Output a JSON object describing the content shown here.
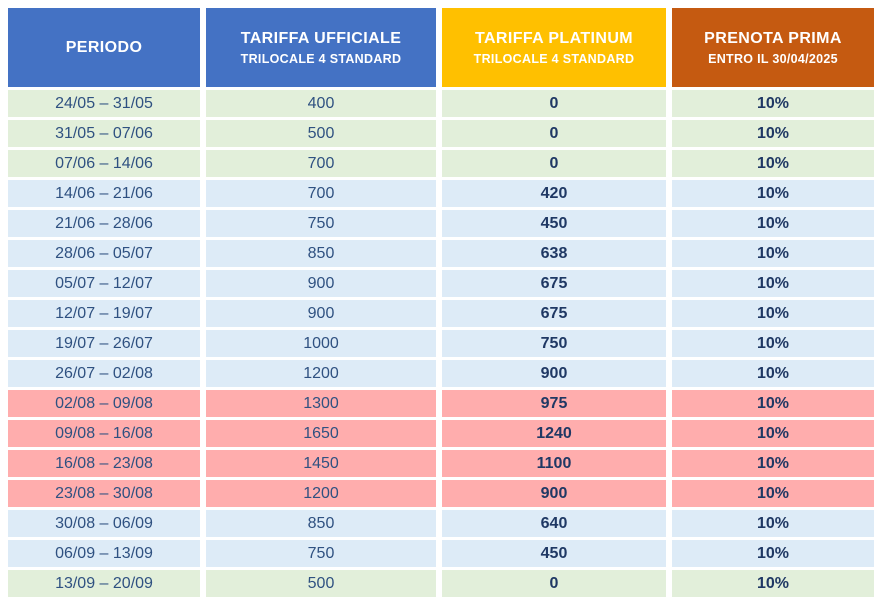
{
  "table": {
    "columns": [
      {
        "title": "PERIODO",
        "subtitle": ""
      },
      {
        "title": "TARIFFA UFFICIALE",
        "subtitle": "TRILOCALE 4 STANDARD"
      },
      {
        "title": "TARIFFA PLATINUM",
        "subtitle": "TRILOCALE 4 STANDARD"
      },
      {
        "title": "PRENOTA PRIMA",
        "subtitle": "ENTRO IL 30/04/2025"
      }
    ],
    "rows": [
      {
        "periodo": "24/05 – 31/05",
        "ufficiale": "400",
        "platinum": "0",
        "prenota": "10%",
        "season": "low"
      },
      {
        "periodo": "31/05 – 07/06",
        "ufficiale": "500",
        "platinum": "0",
        "prenota": "10%",
        "season": "low"
      },
      {
        "periodo": "07/06 – 14/06",
        "ufficiale": "700",
        "platinum": "0",
        "prenota": "10%",
        "season": "low"
      },
      {
        "periodo": "14/06 – 21/06",
        "ufficiale": "700",
        "platinum": "420",
        "prenota": "10%",
        "season": "mid"
      },
      {
        "periodo": "21/06 – 28/06",
        "ufficiale": "750",
        "platinum": "450",
        "prenota": "10%",
        "season": "mid"
      },
      {
        "periodo": "28/06 – 05/07",
        "ufficiale": "850",
        "platinum": "638",
        "prenota": "10%",
        "season": "mid"
      },
      {
        "periodo": "05/07 – 12/07",
        "ufficiale": "900",
        "platinum": "675",
        "prenota": "10%",
        "season": "mid"
      },
      {
        "periodo": "12/07 – 19/07",
        "ufficiale": "900",
        "platinum": "675",
        "prenota": "10%",
        "season": "mid"
      },
      {
        "periodo": "19/07 – 26/07",
        "ufficiale": "1000",
        "platinum": "750",
        "prenota": "10%",
        "season": "mid"
      },
      {
        "periodo": "26/07 – 02/08",
        "ufficiale": "1200",
        "platinum": "900",
        "prenota": "10%",
        "season": "mid"
      },
      {
        "periodo": "02/08 – 09/08",
        "ufficiale": "1300",
        "platinum": "975",
        "prenota": "10%",
        "season": "peak"
      },
      {
        "periodo": "09/08 – 16/08",
        "ufficiale": "1650",
        "platinum": "1240",
        "prenota": "10%",
        "season": "peak"
      },
      {
        "periodo": "16/08 – 23/08",
        "ufficiale": "1450",
        "platinum": "1100",
        "prenota": "10%",
        "season": "peak"
      },
      {
        "periodo": "23/08 – 30/08",
        "ufficiale": "1200",
        "platinum": "900",
        "prenota": "10%",
        "season": "peak"
      },
      {
        "periodo": "30/08 – 06/09",
        "ufficiale": "850",
        "platinum": "640",
        "prenota": "10%",
        "season": "mid"
      },
      {
        "periodo": "06/09 – 13/09",
        "ufficiale": "750",
        "platinum": "450",
        "prenota": "10%",
        "season": "mid"
      },
      {
        "periodo": "13/09 – 20/09",
        "ufficiale": "500",
        "platinum": "0",
        "prenota": "10%",
        "season": "low"
      }
    ]
  },
  "colors": {
    "header_blue": "#4472C4",
    "header_yellow": "#FFC000",
    "header_orange": "#C55A11",
    "season_low_green": "#E2EFDA",
    "season_mid_blue": "#DDEBF7",
    "season_peak_pink": "#FFADAD",
    "body_text": "#2F5181",
    "bold_text": "#1F3864",
    "header_text": "#FFFFFF"
  }
}
